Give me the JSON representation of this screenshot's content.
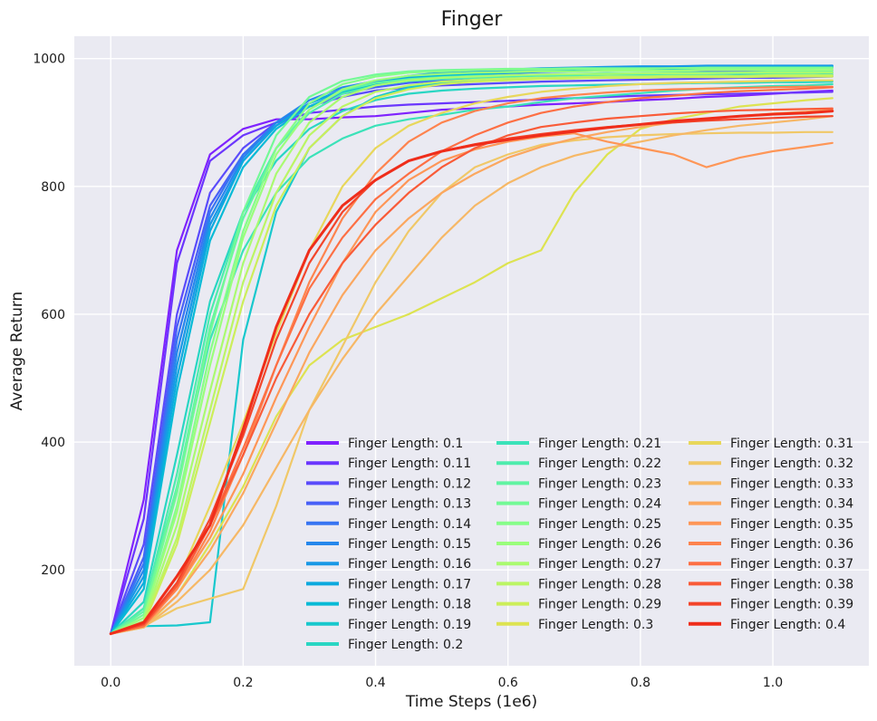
{
  "chart_data": {
    "type": "line",
    "title": "Finger",
    "xlabel": "Time Steps (1e6)",
    "ylabel": "Average Return",
    "xlim": [
      -0.055,
      1.145
    ],
    "ylim": [
      50,
      1035
    ],
    "xticks": [
      "0.0",
      "0.2",
      "0.4",
      "0.6",
      "0.8",
      "1.0"
    ],
    "xtick_values": [
      0.0,
      0.2,
      0.4,
      0.6,
      0.8,
      1.0
    ],
    "yticks": [
      "200",
      "400",
      "600",
      "800",
      "1000"
    ],
    "ytick_values": [
      200,
      400,
      600,
      800,
      1000
    ],
    "grid": true,
    "legend_position": "bottom-right",
    "legend_columns": 3,
    "x": [
      0.0,
      0.05,
      0.1,
      0.15,
      0.2,
      0.25,
      0.3,
      0.35,
      0.4,
      0.45,
      0.5,
      0.55,
      0.6,
      0.65,
      0.7,
      0.75,
      0.8,
      0.85,
      0.9,
      0.95,
      1.0,
      1.05,
      1.09
    ],
    "series": [
      {
        "name": "Finger Length: 0.1",
        "color": "#7f22fe",
        "values": [
          100,
          310,
          700,
          850,
          890,
          905,
          905,
          908,
          910,
          915,
          920,
          922,
          925,
          928,
          930,
          932,
          935,
          937,
          940,
          942,
          945,
          948,
          950
        ]
      },
      {
        "name": "Finger Length: 0.11",
        "color": "#6b36fd",
        "values": [
          100,
          280,
          680,
          840,
          880,
          900,
          915,
          920,
          925,
          928,
          930,
          932,
          934,
          936,
          938,
          940,
          942,
          943,
          944,
          945,
          946,
          947,
          948
        ]
      },
      {
        "name": "Finger Length: 0.12",
        "color": "#5a4bfb",
        "values": [
          100,
          240,
          600,
          790,
          860,
          900,
          925,
          940,
          950,
          955,
          958,
          960,
          962,
          964,
          965,
          966,
          967,
          968,
          969,
          970,
          970,
          971,
          972
        ]
      },
      {
        "name": "Finger Length: 0.13",
        "color": "#4860f7",
        "values": [
          100,
          220,
          580,
          770,
          850,
          895,
          925,
          945,
          955,
          962,
          966,
          970,
          972,
          974,
          975,
          976,
          977,
          978,
          979,
          980,
          980,
          981,
          982
        ]
      },
      {
        "name": "Finger Length: 0.14",
        "color": "#3774f2",
        "values": [
          100,
          210,
          560,
          760,
          850,
          900,
          930,
          950,
          960,
          968,
          972,
          975,
          977,
          979,
          980,
          981,
          982,
          983,
          984,
          985,
          985,
          986,
          986
        ]
      },
      {
        "name": "Finger Length: 0.15",
        "color": "#2587ec",
        "values": [
          100,
          200,
          540,
          750,
          845,
          900,
          935,
          955,
          965,
          972,
          976,
          979,
          981,
          983,
          984,
          985,
          986,
          987,
          987,
          988,
          988,
          988,
          989
        ]
      },
      {
        "name": "Finger Length: 0.16",
        "color": "#1898e6",
        "values": [
          100,
          190,
          520,
          740,
          840,
          895,
          930,
          952,
          965,
          973,
          978,
          981,
          983,
          985,
          986,
          987,
          988,
          988,
          989,
          989,
          989,
          989,
          989
        ]
      },
      {
        "name": "Finger Length: 0.17",
        "color": "#0ca9de",
        "values": [
          100,
          180,
          500,
          730,
          840,
          895,
          930,
          950,
          962,
          970,
          975,
          978,
          980,
          982,
          983,
          984,
          985,
          985,
          986,
          986,
          987,
          987,
          987
        ]
      },
      {
        "name": "Finger Length: 0.18",
        "color": "#08bad6",
        "values": [
          100,
          170,
          480,
          715,
          830,
          890,
          925,
          948,
          960,
          968,
          973,
          976,
          978,
          980,
          981,
          982,
          983,
          984,
          984,
          985,
          985,
          985,
          986
        ]
      },
      {
        "name": "Finger Length: 0.19",
        "color": "#18c8cd",
        "values": [
          100,
          112,
          113,
          118,
          560,
          760,
          860,
          910,
          940,
          955,
          962,
          966,
          968,
          970,
          971,
          972,
          972,
          973,
          973,
          974,
          974,
          974,
          975
        ]
      },
      {
        "name": "Finger Length: 0.2",
        "color": "#29d6c3",
        "values": [
          100,
          150,
          380,
          620,
          760,
          840,
          890,
          918,
          935,
          945,
          950,
          953,
          955,
          957,
          958,
          959,
          960,
          961,
          962,
          962,
          963,
          963,
          964
        ]
      },
      {
        "name": "Finger Length: 0.21",
        "color": "#3be2b9",
        "values": [
          100,
          140,
          330,
          560,
          700,
          790,
          845,
          875,
          895,
          905,
          912,
          920,
          925,
          932,
          938,
          942,
          946,
          950,
          953,
          955,
          957,
          958,
          960
        ]
      },
      {
        "name": "Finger Length: 0.22",
        "color": "#4eecad",
        "values": [
          100,
          140,
          350,
          600,
          760,
          860,
          915,
          945,
          958,
          965,
          968,
          970,
          972,
          973,
          974,
          975,
          975,
          976,
          976,
          977,
          977,
          977,
          978
        ]
      },
      {
        "name": "Finger Length: 0.23",
        "color": "#61f4a2",
        "values": [
          100,
          135,
          330,
          580,
          750,
          860,
          920,
          950,
          962,
          968,
          971,
          973,
          974,
          975,
          976,
          977,
          977,
          978,
          978,
          978,
          979,
          979,
          979
        ]
      },
      {
        "name": "Finger Length: 0.24",
        "color": "#73f996",
        "values": [
          100,
          130,
          320,
          570,
          760,
          880,
          940,
          965,
          975,
          980,
          982,
          983,
          984,
          984,
          985,
          985,
          985,
          985,
          986,
          986,
          986,
          986,
          986
        ]
      },
      {
        "name": "Finger Length: 0.25",
        "color": "#86fd89",
        "values": [
          100,
          125,
          300,
          540,
          730,
          860,
          930,
          960,
          972,
          978,
          980,
          982,
          983,
          983,
          984,
          984,
          984,
          985,
          985,
          985,
          985,
          985,
          985
        ]
      },
      {
        "name": "Finger Length: 0.26",
        "color": "#9afe7c",
        "values": [
          100,
          125,
          290,
          520,
          720,
          850,
          920,
          952,
          966,
          973,
          976,
          978,
          979,
          980,
          980,
          981,
          981,
          981,
          982,
          982,
          982,
          982,
          982
        ]
      },
      {
        "name": "Finger Length: 0.27",
        "color": "#aafa70",
        "values": [
          100,
          120,
          270,
          480,
          680,
          820,
          900,
          940,
          958,
          966,
          970,
          972,
          974,
          975,
          976,
          976,
          977,
          977,
          977,
          978,
          978,
          978,
          978
        ]
      },
      {
        "name": "Finger Length: 0.28",
        "color": "#bbf565",
        "values": [
          100,
          118,
          250,
          450,
          650,
          790,
          880,
          925,
          948,
          958,
          964,
          967,
          969,
          970,
          971,
          972,
          972,
          973,
          973,
          973,
          974,
          974,
          974
        ]
      },
      {
        "name": "Finger Length: 0.29",
        "color": "#ccee5a",
        "values": [
          100,
          115,
          240,
          430,
          620,
          770,
          860,
          910,
          938,
          952,
          960,
          964,
          966,
          968,
          969,
          970,
          970,
          971,
          971,
          971,
          972,
          972,
          972
        ]
      },
      {
        "name": "Finger Length: 0.3",
        "color": "#dde351",
        "values": [
          100,
          110,
          160,
          240,
          330,
          440,
          520,
          560,
          580,
          600,
          625,
          650,
          680,
          700,
          790,
          850,
          890,
          905,
          915,
          925,
          930,
          935,
          938
        ]
      },
      {
        "name": "Finger Length: 0.31",
        "color": "#e8d75b",
        "values": [
          100,
          112,
          180,
          300,
          430,
          570,
          700,
          800,
          860,
          895,
          915,
          930,
          940,
          948,
          953,
          957,
          960,
          962,
          963,
          964,
          965,
          966,
          966
        ]
      },
      {
        "name": "Finger Length: 0.32",
        "color": "#f0c868",
        "values": [
          100,
          112,
          140,
          155,
          170,
          300,
          450,
          550,
          650,
          730,
          790,
          830,
          850,
          865,
          872,
          877,
          880,
          882,
          883,
          884,
          884,
          885,
          885
        ]
      },
      {
        "name": "Finger Length: 0.33",
        "color": "#f6b866",
        "values": [
          100,
          110,
          150,
          200,
          270,
          360,
          450,
          530,
          600,
          660,
          720,
          770,
          805,
          830,
          848,
          860,
          870,
          880,
          888,
          895,
          900,
          905,
          910
        ]
      },
      {
        "name": "Finger Length: 0.34",
        "color": "#fba75f",
        "values": [
          100,
          112,
          160,
          230,
          320,
          430,
          540,
          630,
          700,
          750,
          790,
          820,
          845,
          862,
          875,
          885,
          893,
          900,
          905,
          910,
          914,
          917,
          920
        ]
      },
      {
        "name": "Finger Length: 0.35",
        "color": "#fe9657",
        "values": [
          100,
          112,
          170,
          250,
          350,
          470,
          580,
          680,
          760,
          810,
          840,
          858,
          870,
          878,
          883,
          870,
          860,
          850,
          830,
          845,
          855,
          862,
          868
        ]
      },
      {
        "name": "Finger Length: 0.36",
        "color": "#fe834e",
        "values": [
          100,
          112,
          170,
          260,
          380,
          520,
          650,
          750,
          820,
          870,
          900,
          918,
          930,
          938,
          943,
          947,
          950,
          952,
          953,
          954,
          955,
          956,
          956
        ]
      },
      {
        "name": "Finger Length: 0.37",
        "color": "#fd6f44",
        "values": [
          100,
          112,
          175,
          270,
          390,
          520,
          640,
          720,
          780,
          820,
          855,
          880,
          900,
          915,
          925,
          932,
          938,
          942,
          946,
          949,
          951,
          953,
          955
        ]
      },
      {
        "name": "Finger Length: 0.38",
        "color": "#f95b38",
        "values": [
          100,
          115,
          175,
          270,
          380,
          500,
          600,
          680,
          740,
          790,
          830,
          860,
          880,
          893,
          900,
          906,
          910,
          914,
          917,
          919,
          920,
          921,
          922
        ]
      },
      {
        "name": "Finger Length: 0.39",
        "color": "#f3452b",
        "values": [
          100,
          115,
          180,
          280,
          410,
          560,
          680,
          760,
          810,
          840,
          855,
          866,
          875,
          882,
          888,
          893,
          897,
          900,
          903,
          905,
          907,
          909,
          910
        ]
      },
      {
        "name": "Finger Length: 0.4",
        "color": "#ef2d1b",
        "values": [
          100,
          118,
          190,
          270,
          420,
          580,
          700,
          770,
          810,
          840,
          855,
          865,
          873,
          880,
          886,
          892,
          897,
          902,
          906,
          910,
          913,
          915,
          918
        ]
      }
    ]
  }
}
